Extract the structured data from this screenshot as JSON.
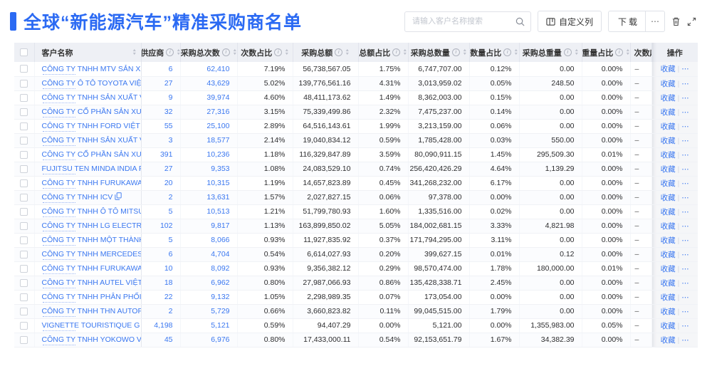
{
  "page": {
    "title": "全球“新能源汽车”精准采购商名单"
  },
  "toolbar": {
    "search_placeholder": "请输入客户名称搜索",
    "customize_label": "自定义列",
    "download_label": "下载",
    "more_label": "⋯"
  },
  "table": {
    "columns": [
      {
        "key": "checkbox",
        "label": "",
        "info": false,
        "sort": false
      },
      {
        "key": "name",
        "label": "客户名称",
        "info": false,
        "sort": true
      },
      {
        "key": "supplier",
        "label": "供应商",
        "info": true,
        "sort": true
      },
      {
        "key": "count",
        "label": "采购总次数",
        "info": true,
        "sort": true
      },
      {
        "key": "count_pct",
        "label": "次数占比",
        "info": true,
        "sort": true
      },
      {
        "key": "amount",
        "label": "采购总额",
        "info": true,
        "sort": true
      },
      {
        "key": "amount_pct",
        "label": "总额占比",
        "info": true,
        "sort": true
      },
      {
        "key": "qty",
        "label": "采购总数量",
        "info": true,
        "sort": true
      },
      {
        "key": "qty_pct",
        "label": "数量占比",
        "info": true,
        "sort": true
      },
      {
        "key": "weight",
        "label": "采购总重量",
        "info": true,
        "sort": true
      },
      {
        "key": "weight_pct",
        "label": "重量占比",
        "info": true,
        "sort": true
      },
      {
        "key": "trend",
        "label": "次数趋势",
        "info": false,
        "sort": false
      },
      {
        "key": "actions",
        "label": "操作",
        "info": false,
        "sort": false
      }
    ],
    "actions": {
      "favorite": "收藏",
      "divider": "|",
      "more": "⋯"
    },
    "rows": [
      {
        "name": "CÔNG TY TNHH MTV SẢN XUẤ...",
        "supplier": "6",
        "count": "62,410",
        "count_pct": "7.19%",
        "amount": "56,738,567.05",
        "amount_pct": "1.75%",
        "qty": "6,747,707.00",
        "qty_pct": "0.12%",
        "weight": "0.00",
        "weight_pct": "0.00%",
        "trend": "–"
      },
      {
        "name": "CÔNG TY Ô TÔ TOYOTA VIỆT ...",
        "supplier": "27",
        "count": "43,629",
        "count_pct": "5.02%",
        "amount": "139,776,561.16",
        "amount_pct": "4.31%",
        "qty": "3,013,959.02",
        "qty_pct": "0.05%",
        "weight": "248.50",
        "weight_pct": "0.00%",
        "trend": "–"
      },
      {
        "name": "CÔNG TY TNHH SẢN XUẤT VÀ ...",
        "supplier": "9",
        "count": "39,974",
        "count_pct": "4.60%",
        "amount": "48,411,173.62",
        "amount_pct": "1.49%",
        "qty": "8,362,003.00",
        "qty_pct": "0.15%",
        "weight": "0.00",
        "weight_pct": "0.00%",
        "trend": "–"
      },
      {
        "name": "CÔNG TY CỔ PHẦN SẢN XUẤT...",
        "supplier": "32",
        "count": "27,316",
        "count_pct": "3.15%",
        "amount": "75,339,499.86",
        "amount_pct": "2.32%",
        "qty": "7,475,237.00",
        "qty_pct": "0.14%",
        "weight": "0.00",
        "weight_pct": "0.00%",
        "trend": "–"
      },
      {
        "name": "CÔNG TY TNHH FORD VIỆT NAM",
        "supplier": "55",
        "count": "25,100",
        "count_pct": "2.89%",
        "amount": "64,516,143.61",
        "amount_pct": "1.99%",
        "qty": "3,213,159.00",
        "qty_pct": "0.06%",
        "weight": "0.00",
        "weight_pct": "0.00%",
        "trend": "–"
      },
      {
        "name": "CÔNG TY TNHH SẢN XUẤT VÀ ...",
        "supplier": "3",
        "count": "18,577",
        "count_pct": "2.14%",
        "amount": "19,040,834.12",
        "amount_pct": "0.59%",
        "qty": "1,785,428.00",
        "qty_pct": "0.03%",
        "weight": "550.00",
        "weight_pct": "0.00%",
        "trend": "–"
      },
      {
        "name": "CÔNG TY CỔ PHẦN SẢN XUẤT...",
        "supplier": "391",
        "count": "10,236",
        "count_pct": "1.18%",
        "amount": "116,329,847.89",
        "amount_pct": "3.59%",
        "qty": "80,090,911.15",
        "qty_pct": "1.45%",
        "weight": "295,509.30",
        "weight_pct": "0.01%",
        "trend": "–"
      },
      {
        "name": "FUJITSU TEN MINDA INDIA PVT...",
        "supplier": "27",
        "count": "9,353",
        "count_pct": "1.08%",
        "amount": "24,083,529.10",
        "amount_pct": "0.74%",
        "qty": "256,420,426.29",
        "qty_pct": "4.64%",
        "weight": "1,139.29",
        "weight_pct": "0.00%",
        "trend": "–"
      },
      {
        "name": "CÔNG TY TNHH FURUKAWA A...",
        "supplier": "20",
        "count": "10,315",
        "count_pct": "1.19%",
        "amount": "14,657,823.89",
        "amount_pct": "0.45%",
        "qty": "341,268,232.00",
        "qty_pct": "6.17%",
        "weight": "0.00",
        "weight_pct": "0.00%",
        "trend": "–"
      },
      {
        "name": "CÔNG TY TNHH ICV",
        "supplier": "2",
        "count": "13,631",
        "count_pct": "1.57%",
        "amount": "2,027,827.15",
        "amount_pct": "0.06%",
        "qty": "97,378.00",
        "qty_pct": "0.00%",
        "weight": "0.00",
        "weight_pct": "0.00%",
        "trend": "–"
      },
      {
        "name": "CÔNG TY TNHH Ô TÔ MITSUBI...",
        "supplier": "5",
        "count": "10,513",
        "count_pct": "1.21%",
        "amount": "51,799,780.93",
        "amount_pct": "1.60%",
        "qty": "1,335,516.00",
        "qty_pct": "0.02%",
        "weight": "0.00",
        "weight_pct": "0.00%",
        "trend": "–"
      },
      {
        "name": "CÔNG TY TNHH LG ELECTRON...",
        "supplier": "102",
        "count": "9,817",
        "count_pct": "1.13%",
        "amount": "163,899,850.02",
        "amount_pct": "5.05%",
        "qty": "184,002,681.15",
        "qty_pct": "3.33%",
        "weight": "4,821.98",
        "weight_pct": "0.00%",
        "trend": "–"
      },
      {
        "name": "CÔNG TY TNHH MỘT THÀNH V...",
        "supplier": "5",
        "count": "8,066",
        "count_pct": "0.93%",
        "amount": "11,927,835.92",
        "amount_pct": "0.37%",
        "qty": "171,794,295.00",
        "qty_pct": "3.11%",
        "weight": "0.00",
        "weight_pct": "0.00%",
        "trend": "–"
      },
      {
        "name": "CÔNG TY TNHH MERCEDES-B...",
        "supplier": "6",
        "count": "4,704",
        "count_pct": "0.54%",
        "amount": "6,614,027.93",
        "amount_pct": "0.20%",
        "qty": "399,627.15",
        "qty_pct": "0.01%",
        "weight": "0.12",
        "weight_pct": "0.00%",
        "trend": "–"
      },
      {
        "name": "CÔNG TY TNHH FURUKAWA A...",
        "supplier": "10",
        "count": "8,092",
        "count_pct": "0.93%",
        "amount": "9,356,382.12",
        "amount_pct": "0.29%",
        "qty": "98,570,474.00",
        "qty_pct": "1.78%",
        "weight": "180,000.00",
        "weight_pct": "0.01%",
        "trend": "–"
      },
      {
        "name": "CÔNG TY TNHH AUTEL VIỆT N...",
        "supplier": "18",
        "count": "6,962",
        "count_pct": "0.80%",
        "amount": "27,987,066.93",
        "amount_pct": "0.86%",
        "qty": "135,428,338.71",
        "qty_pct": "2.45%",
        "weight": "0.00",
        "weight_pct": "0.00%",
        "trend": "–"
      },
      {
        "name": "CÔNG TY TNHH PHÂN PHỐI T...",
        "supplier": "22",
        "count": "9,132",
        "count_pct": "1.05%",
        "amount": "2,298,989.35",
        "amount_pct": "0.07%",
        "qty": "173,054.00",
        "qty_pct": "0.00%",
        "weight": "0.00",
        "weight_pct": "0.00%",
        "trend": "–"
      },
      {
        "name": "CÔNG TY TNHH THN AUTOPAR...",
        "supplier": "2",
        "count": "5,729",
        "count_pct": "0.66%",
        "amount": "3,660,823.82",
        "amount_pct": "0.11%",
        "qty": "99,045,515.00",
        "qty_pct": "1.79%",
        "weight": "0.00",
        "weight_pct": "0.00%",
        "trend": "–"
      },
      {
        "name": "VIGNETTE TOURISTIQUE G UNI...",
        "supplier": "4,198",
        "count": "5,121",
        "count_pct": "0.59%",
        "amount": "94,407.29",
        "amount_pct": "0.00%",
        "qty": "5,121.00",
        "qty_pct": "0.00%",
        "weight": "1,355,983.00",
        "weight_pct": "0.05%",
        "trend": "–"
      },
      {
        "name": "CÔNG TY TNHH YOKOWO VIỆT...",
        "supplier": "45",
        "count": "6,976",
        "count_pct": "0.80%",
        "amount": "17,433,000.11",
        "amount_pct": "0.54%",
        "qty": "92,153,651.79",
        "qty_pct": "1.67%",
        "weight": "34,382.39",
        "weight_pct": "0.00%",
        "trend": "–"
      }
    ]
  }
}
